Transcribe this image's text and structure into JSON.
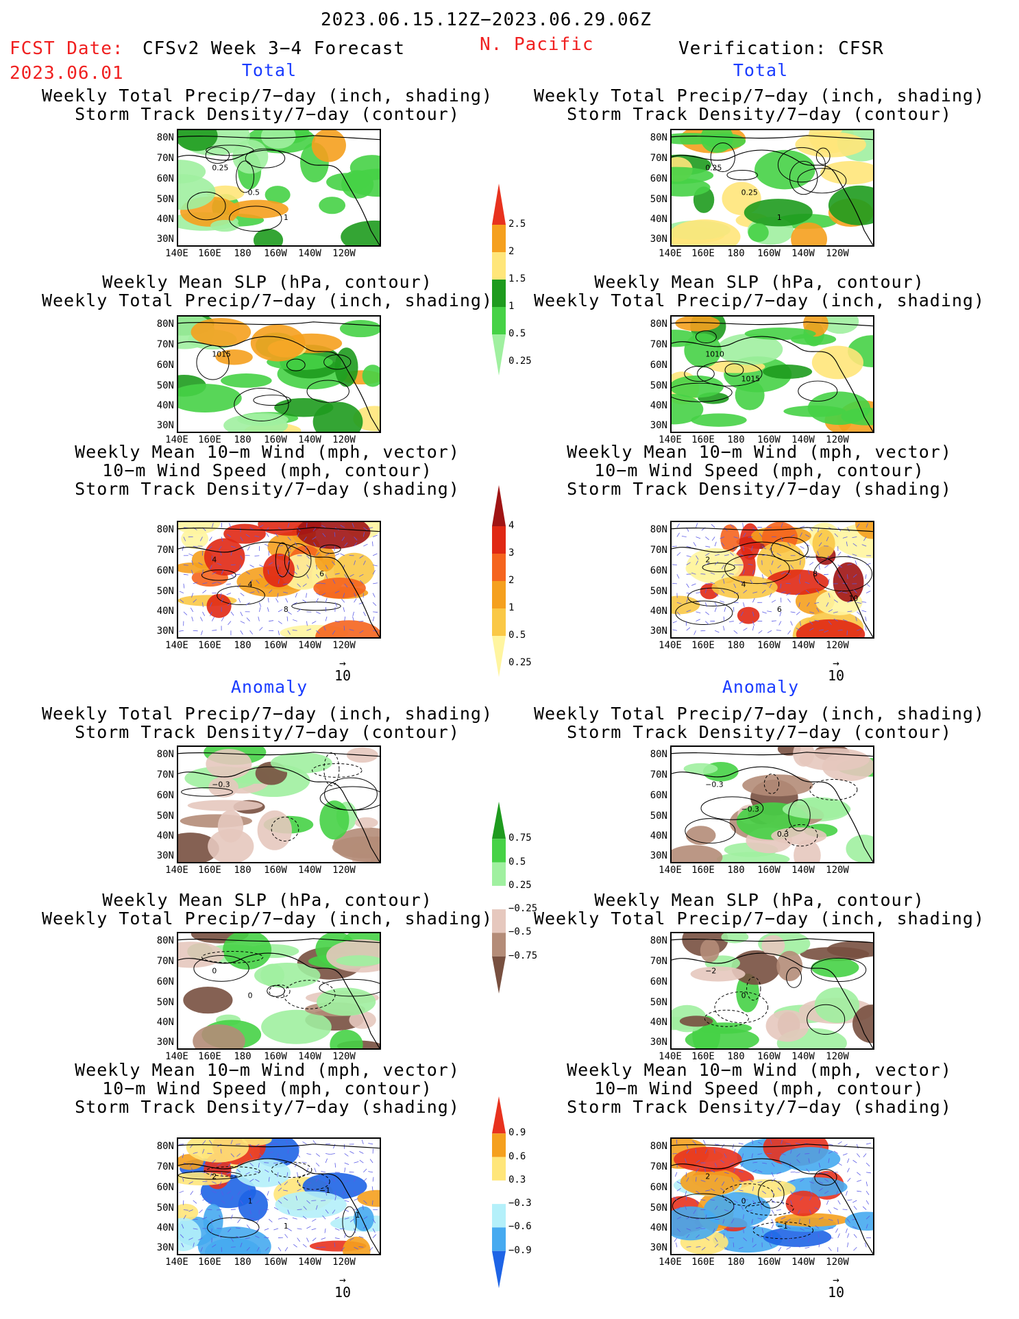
{
  "header": {
    "valid_period": "2023.06.15.12Z−2023.06.29.06Z",
    "fcst_label": "FCST Date:",
    "fcst_date": "2023.06.01",
    "model": "CFSv2 Week 3−4 Forecast",
    "region": "N. Pacific",
    "verification": "Verification: CFSR"
  },
  "sections": {
    "total": "Total",
    "anomaly": "Anomaly"
  },
  "titles": {
    "precip_storm": [
      "Weekly Total Precip/7−day (inch, shading)",
      "Storm Track Density/7−day (contour)"
    ],
    "slp_precip": [
      "Weekly Mean SLP (hPa, contour)",
      "Weekly Total Precip/7−day (inch, shading)"
    ],
    "wind_storm": [
      "Weekly Mean 10−m Wind (mph, vector)",
      "10−m Wind Speed (mph, contour)",
      "Storm Track Density/7−day (shading)"
    ]
  },
  "axes": {
    "lat_ticks": [
      "80N",
      "70N",
      "60N",
      "50N",
      "40N",
      "30N"
    ],
    "lon_ticks": [
      "140E",
      "160E",
      "180",
      "160W",
      "140W",
      "120W"
    ]
  },
  "vector_ref": "10",
  "colorbars": {
    "precip_total": {
      "labels": [
        "2.5",
        "2",
        "1.5",
        "1",
        "0.5",
        "0.25"
      ],
      "colors": [
        "#e8321e",
        "#f5a01e",
        "#ffe67a",
        "#1e9b1e",
        "#46d246",
        "#a0f0a0"
      ]
    },
    "storm_total": {
      "labels": [
        "4",
        "3",
        "2",
        "1",
        "0.5",
        "0.25"
      ],
      "colors": [
        "#a01414",
        "#e02814",
        "#f5641e",
        "#f5a01e",
        "#fac846",
        "#fff5a0"
      ]
    },
    "precip_anom": {
      "labels": [
        "0.75",
        "0.5",
        "0.25",
        "−0.25",
        "−0.5",
        "−0.75"
      ],
      "colors": [
        "#1e9b1e",
        "#46d246",
        "#a0f0a0",
        "#ffffff",
        "#e6c8be",
        "#b48c78",
        "#785040"
      ]
    },
    "storm_anom": {
      "labels": [
        "0.9",
        "0.6",
        "0.3",
        "−0.3",
        "−0.6",
        "−0.9"
      ],
      "colors": [
        "#e8321e",
        "#f5a01e",
        "#ffe67a",
        "#ffffff",
        "#b4f0fa",
        "#46aaf0",
        "#1e64e6"
      ]
    }
  },
  "maps": [
    {
      "id": "fcst-total-precip",
      "shade": "precip",
      "labels": [
        "0.25",
        "0.5",
        "1"
      ]
    },
    {
      "id": "fcst-total-slp",
      "shade": "precip",
      "labels": [
        "1015"
      ]
    },
    {
      "id": "fcst-total-wind",
      "shade": "storm",
      "labels": [
        "4",
        "4",
        "8",
        "6"
      ]
    },
    {
      "id": "fcst-anom-precip",
      "shade": "precip-anom",
      "labels": [
        "−0.3"
      ]
    },
    {
      "id": "fcst-anom-slp",
      "shade": "precip-anom",
      "labels": [
        "0",
        "0"
      ]
    },
    {
      "id": "fcst-anom-wind",
      "shade": "storm-anom",
      "labels": [
        "2",
        "1",
        "1",
        "−1",
        "1"
      ]
    },
    {
      "id": "verif-total-precip",
      "shade": "precip",
      "labels": [
        "0.25",
        "0.25",
        "1"
      ]
    },
    {
      "id": "verif-total-slp",
      "shade": "precip",
      "labels": [
        "1010",
        "1015"
      ]
    },
    {
      "id": "verif-total-wind",
      "shade": "storm",
      "labels": [
        "2",
        "4",
        "6",
        "8",
        "10"
      ]
    },
    {
      "id": "verif-anom-precip",
      "shade": "precip-anom",
      "labels": [
        "−0.3",
        "−0.3",
        "0.3"
      ]
    },
    {
      "id": "verif-anom-slp",
      "shade": "precip-anom",
      "labels": [
        "−2",
        "0"
      ]
    },
    {
      "id": "verif-anom-wind",
      "shade": "storm-anom",
      "labels": [
        "2",
        "0",
        "−1"
      ]
    }
  ]
}
